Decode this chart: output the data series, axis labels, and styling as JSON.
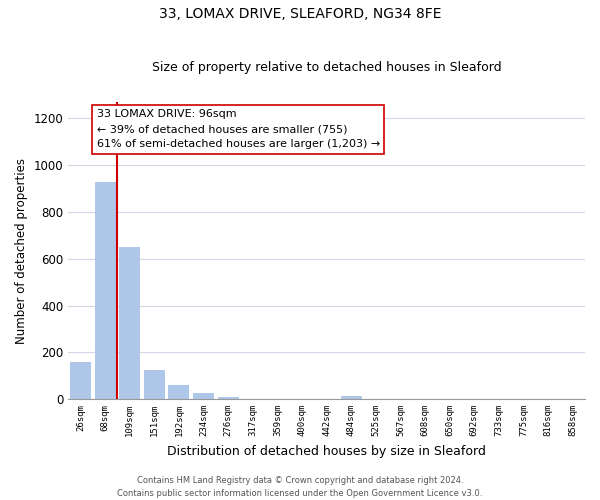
{
  "title": "33, LOMAX DRIVE, SLEAFORD, NG34 8FE",
  "subtitle": "Size of property relative to detached houses in Sleaford",
  "xlabel": "Distribution of detached houses by size in Sleaford",
  "ylabel": "Number of detached properties",
  "bar_labels": [
    "26sqm",
    "68sqm",
    "109sqm",
    "151sqm",
    "192sqm",
    "234sqm",
    "276sqm",
    "317sqm",
    "359sqm",
    "400sqm",
    "442sqm",
    "484sqm",
    "525sqm",
    "567sqm",
    "608sqm",
    "650sqm",
    "692sqm",
    "733sqm",
    "775sqm",
    "816sqm",
    "858sqm"
  ],
  "bar_values": [
    160,
    930,
    650,
    125,
    60,
    28,
    10,
    0,
    0,
    0,
    0,
    12,
    0,
    0,
    0,
    0,
    0,
    0,
    0,
    0,
    0
  ],
  "bar_color": "#aec6e8",
  "vline_x_idx": 2,
  "vline_color": "#cc0000",
  "annotation_line1": "33 LOMAX DRIVE: 96sqm",
  "annotation_line2": "← 39% of detached houses are smaller (755)",
  "annotation_line3": "61% of semi-detached houses are larger (1,203) →",
  "ylim": [
    0,
    1270
  ],
  "yticks": [
    0,
    200,
    400,
    600,
    800,
    1000,
    1200
  ],
  "footer1": "Contains HM Land Registry data © Crown copyright and database right 2024.",
  "footer2": "Contains public sector information licensed under the Open Government Licence v3.0.",
  "bg_color": "#ffffff",
  "grid_color": "#d0d8e8",
  "title_fontsize": 10,
  "subtitle_fontsize": 9,
  "ylabel_fontsize": 8.5,
  "xlabel_fontsize": 9
}
